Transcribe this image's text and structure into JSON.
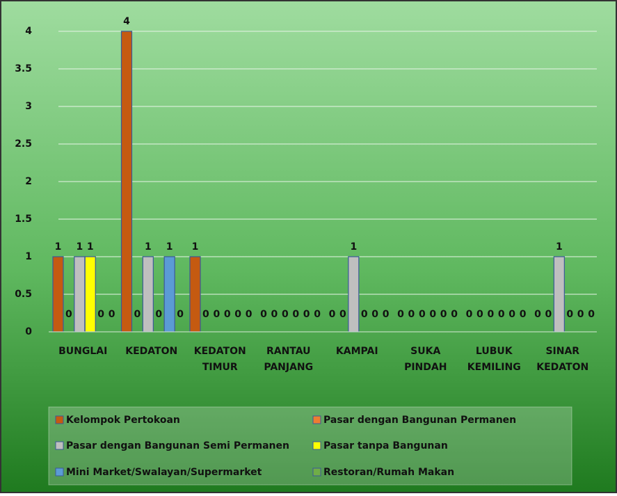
{
  "chart_data": {
    "type": "bar",
    "categories": [
      "BUNGLAI",
      "KEDATON",
      "KEDATON TIMUR",
      "RANTAU PANJANG",
      "KAMPAI",
      "SUKA PINDAH",
      "LUBUK KEMILING",
      "SINAR KEDATON"
    ],
    "series": [
      {
        "name": "Kelompok Pertokoan",
        "color": "#c55a11",
        "values": [
          1,
          4,
          1,
          0,
          0,
          0,
          0,
          0
        ]
      },
      {
        "name": "Pasar dengan Bangunan Permanen",
        "color": "#ed7d31",
        "values": [
          0,
          0,
          0,
          0,
          0,
          0,
          0,
          0
        ]
      },
      {
        "name": "Pasar dengan Bangunan Semi Permanen",
        "color": "#bfbfbf",
        "values": [
          1,
          1,
          0,
          0,
          1,
          0,
          0,
          1
        ]
      },
      {
        "name": "Pasar tanpa Bangunan",
        "color": "#ffff00",
        "values": [
          1,
          0,
          0,
          0,
          0,
          0,
          0,
          0
        ]
      },
      {
        "name": "Mini Market/Swalayan/Supermarket",
        "color": "#5b9bd5",
        "values": [
          0,
          1,
          0,
          0,
          0,
          0,
          0,
          0
        ]
      },
      {
        "name": "Restoran/Rumah Makan",
        "color": "#70ad47",
        "values": [
          0,
          0,
          0,
          0,
          0,
          0,
          0,
          0
        ]
      }
    ],
    "ylim": [
      0,
      4
    ],
    "yticks": [
      0,
      0.5,
      1,
      1.5,
      2,
      2.5,
      3,
      3.5,
      4
    ],
    "grid": true,
    "legend": "bottom"
  }
}
